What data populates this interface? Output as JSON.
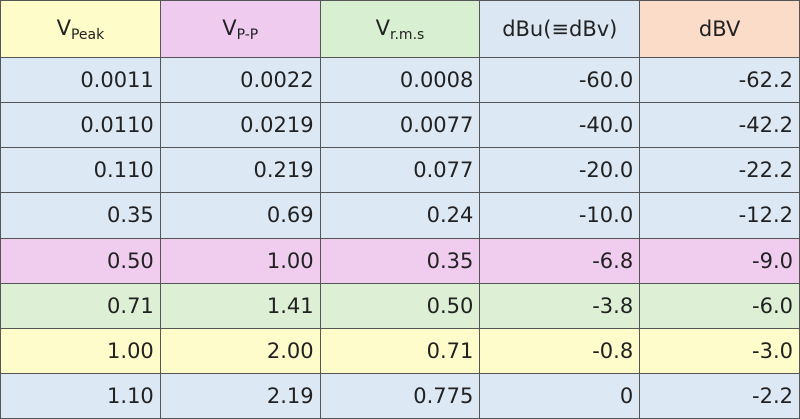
{
  "table": {
    "header": [
      {
        "main": "V",
        "sub": "Peak"
      },
      {
        "main": "V",
        "sub": "P-P"
      },
      {
        "main": "V",
        "sub": "r.m.s"
      },
      {
        "main": "dBu(≡dBv)"
      },
      {
        "main": "dBV"
      }
    ],
    "rows": [
      [
        "0.0011",
        "0.0022",
        "0.0008",
        "-60.0",
        "-62.2"
      ],
      [
        "0.0110",
        "0.0219",
        "0.0077",
        "-40.0",
        "-42.2"
      ],
      [
        "0.110",
        "0.219",
        "0.077",
        "-20.0",
        "-22.2"
      ],
      [
        "0.35",
        "0.69",
        "0.24",
        "-10.0",
        "-12.2"
      ],
      [
        "0.50",
        "1.00",
        "0.35",
        "-6.8",
        "-9.0"
      ],
      [
        "0.71",
        "1.41",
        "0.50",
        "-3.8",
        "-6.0"
      ],
      [
        "1.00",
        "2.00",
        "0.71",
        "-0.8",
        "-3.0"
      ],
      [
        "1.10",
        "2.19",
        "0.775",
        "0",
        "-2.2"
      ]
    ]
  }
}
